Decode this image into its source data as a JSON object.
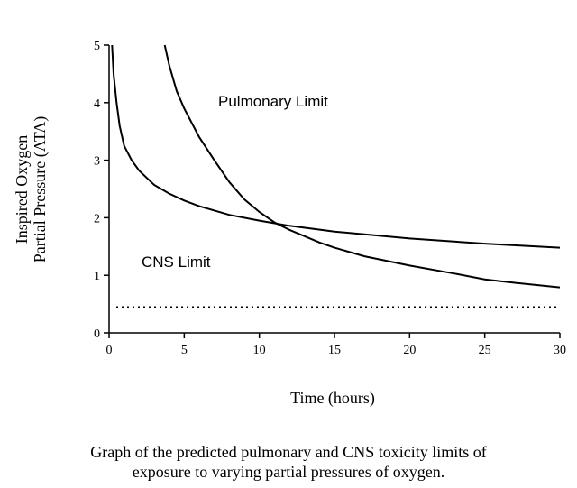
{
  "chart_data": {
    "type": "line",
    "title": "",
    "xlabel": "Time (hours)",
    "ylabel_lines": [
      "Inspired Oxygen",
      "Partial Pressure (ATA)"
    ],
    "xlim": [
      0,
      30
    ],
    "ylim": [
      0,
      5
    ],
    "xticks": [
      0,
      5,
      10,
      15,
      20,
      25,
      30
    ],
    "yticks": [
      0,
      1,
      2,
      3,
      4,
      5
    ],
    "grid": false,
    "series": [
      {
        "key": "cns",
        "label": "CNS Limit",
        "x": [
          0.2,
          0.3,
          0.5,
          0.7,
          1,
          1.5,
          2,
          3,
          4,
          5,
          6,
          8,
          10,
          12,
          15,
          20,
          25,
          30
        ],
        "y": [
          5.0,
          4.5,
          4.0,
          3.6,
          3.25,
          3.0,
          2.82,
          2.57,
          2.42,
          2.3,
          2.2,
          2.05,
          1.95,
          1.86,
          1.76,
          1.64,
          1.55,
          1.48
        ]
      },
      {
        "key": "pulmonary",
        "label": "Pulmonary Limit",
        "x": [
          3.7,
          4,
          4.5,
          5,
          6,
          7,
          8,
          9,
          10,
          11,
          12,
          13,
          14,
          15,
          17,
          20,
          23,
          25,
          27,
          30
        ],
        "y": [
          5.0,
          4.65,
          4.2,
          3.9,
          3.4,
          3.0,
          2.62,
          2.32,
          2.1,
          1.92,
          1.79,
          1.68,
          1.57,
          1.48,
          1.33,
          1.17,
          1.03,
          0.93,
          0.87,
          0.79
        ]
      }
    ],
    "reference_line": {
      "y": 0.45,
      "style": "dotted"
    }
  },
  "caption_lines": [
    "Graph of the predicted pulmonary and CNS toxicity limits of",
    "exposure to varying partial pressures of oxygen."
  ]
}
